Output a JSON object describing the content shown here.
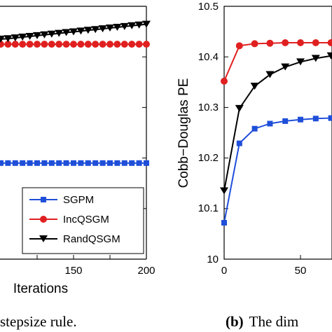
{
  "chart_data": [
    {
      "type": "line",
      "title": "",
      "xlabel": "Iterations",
      "ylabel": "",
      "xlim": [
        0,
        200
      ],
      "x_ticks": [
        "150",
        "200"
      ],
      "grid": false,
      "legend_placement": "lower-right",
      "series": [
        {
          "name": "SGPM",
          "color": "#1f4fd9",
          "marker": "square",
          "x": [
            0,
            10,
            20,
            30,
            40,
            50,
            60,
            70,
            80,
            90,
            100,
            110,
            120,
            130,
            140,
            150,
            160,
            170,
            180,
            190,
            200
          ],
          "y": [
            0.38,
            0.38,
            0.38,
            0.38,
            0.38,
            0.38,
            0.38,
            0.38,
            0.38,
            0.38,
            0.38,
            0.38,
            0.38,
            0.38,
            0.38,
            0.38,
            0.38,
            0.38,
            0.38,
            0.38,
            0.38
          ]
        },
        {
          "name": "IncQSGM",
          "color": "#e02020",
          "marker": "circle",
          "x": [
            0,
            10,
            20,
            30,
            40,
            50,
            60,
            70,
            80,
            90,
            100,
            110,
            120,
            130,
            140,
            150,
            160,
            170,
            180,
            190,
            200
          ],
          "y": [
            0.85,
            0.85,
            0.85,
            0.85,
            0.85,
            0.85,
            0.85,
            0.85,
            0.85,
            0.85,
            0.85,
            0.85,
            0.85,
            0.85,
            0.85,
            0.85,
            0.85,
            0.85,
            0.85,
            0.85,
            0.85
          ]
        },
        {
          "name": "RandQSGM",
          "color": "#000000",
          "marker": "triangle-down",
          "x": [
            0,
            10,
            20,
            30,
            40,
            50,
            60,
            70,
            80,
            90,
            100,
            110,
            120,
            130,
            140,
            150,
            160,
            170,
            180,
            190,
            200
          ],
          "y": [
            0.87,
            0.872,
            0.875,
            0.878,
            0.881,
            0.884,
            0.887,
            0.89,
            0.893,
            0.896,
            0.899,
            0.902,
            0.905,
            0.908,
            0.911,
            0.914,
            0.917,
            0.92,
            0.923,
            0.926,
            0.929
          ]
        }
      ]
    },
    {
      "type": "line",
      "title": "",
      "xlabel": "",
      "ylabel": "Cobb−Douglas PE",
      "ylim": [
        10,
        10.5
      ],
      "y_ticks": [
        "10",
        "10.1",
        "10.2",
        "10.3",
        "10.4",
        "10.5"
      ],
      "x_ticks": [
        "0",
        "50"
      ],
      "grid": false,
      "series": [
        {
          "name": "SGPM",
          "color": "#1f4fd9",
          "marker": "square",
          "x": [
            0,
            10,
            20,
            30,
            40,
            50,
            60,
            70,
            80
          ],
          "y": [
            10.072,
            10.229,
            10.258,
            10.268,
            10.273,
            10.276,
            10.278,
            10.279,
            10.28
          ]
        },
        {
          "name": "IncQSGM",
          "color": "#e02020",
          "marker": "circle",
          "x": [
            0,
            10,
            20,
            30,
            40,
            50,
            60,
            70,
            80
          ],
          "y": [
            10.352,
            10.422,
            10.426,
            10.427,
            10.428,
            10.428,
            10.428,
            10.428,
            10.428
          ]
        },
        {
          "name": "RandQSGM",
          "color": "#000000",
          "marker": "triangle-down",
          "x": [
            0,
            10,
            20,
            30,
            40,
            50,
            60,
            70,
            80
          ],
          "y": [
            10.135,
            10.298,
            10.342,
            10.365,
            10.38,
            10.39,
            10.397,
            10.402,
            10.405
          ]
        }
      ]
    }
  ],
  "captions": {
    "left_text": "stepsize rule.",
    "right_label": "(b)",
    "right_text": "The dim"
  }
}
